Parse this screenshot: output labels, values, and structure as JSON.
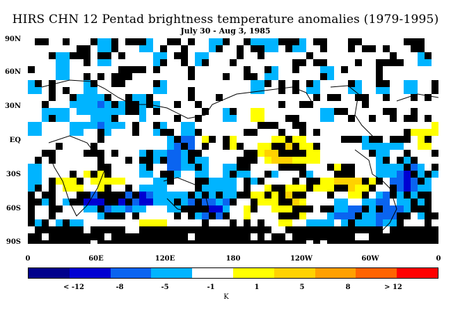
{
  "title": "HIRS CHN 12 Pentad brightness temperature anomalies (1979-1995)",
  "subtitle": "July 30 - Aug 3, 1985",
  "lat_labels": [
    "90N",
    "60N",
    "30N",
    "EQ",
    "30S",
    "60S",
    "90S"
  ],
  "lon_labels": [
    "0",
    "60E",
    "120E",
    "180",
    "120W",
    "60W",
    "0"
  ],
  "colorbar": {
    "colors": [
      "#00008c",
      "#0000d2",
      "#0a64f0",
      "#00b4ff",
      "#ffffff",
      "#ffff00",
      "#ffd200",
      "#ffa000",
      "#ff6400",
      "#ff0000"
    ],
    "labels": [
      "< -12",
      "-8",
      "-5",
      "-1",
      "1",
      "5",
      "8",
      "> 12"
    ],
    "units": "K"
  },
  "map_colors": {
    "missing": "#000000",
    "neutral": "#ffffff",
    "cool_light": "#00b4ff",
    "cool_mid": "#0a64f0",
    "cool_dark": "#0000d2",
    "warm_light": "#ffff00",
    "warm_mid": "#ffd200",
    "warm_dark": "#ffa000"
  }
}
